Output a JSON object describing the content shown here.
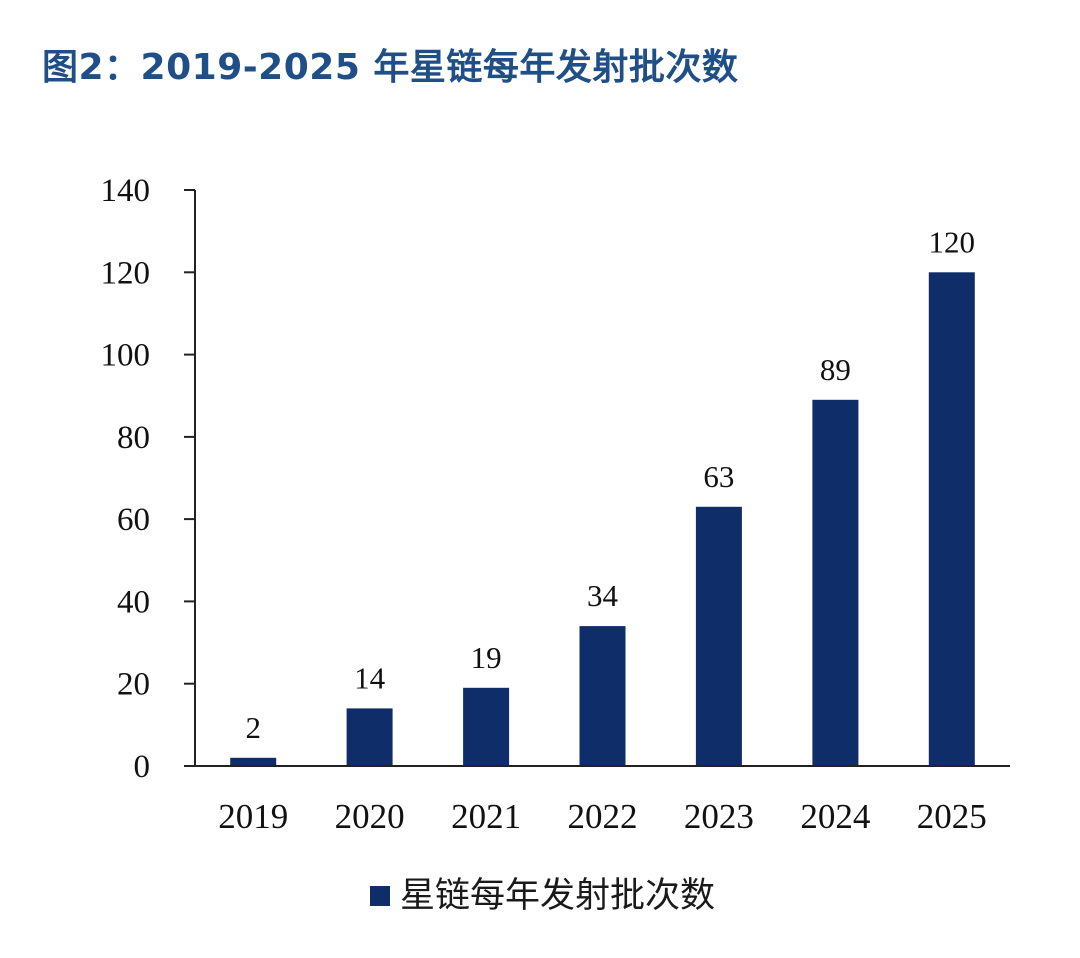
{
  "colors": {
    "bar": "#0e2d69",
    "title": "#1f4f86",
    "axis": "#222222"
  },
  "chart_data": {
    "type": "bar",
    "title": "图2：2019-2025 年星链每年发射批次数",
    "categories": [
      "2019",
      "2020",
      "2021",
      "2022",
      "2023",
      "2024",
      "2025"
    ],
    "series": [
      {
        "name": "星链每年发射批次数",
        "values": [
          2,
          14,
          19,
          34,
          63,
          89,
          120
        ]
      }
    ],
    "data_labels": [
      "2",
      "14",
      "19",
      "34",
      "63",
      "89",
      "120"
    ],
    "ylim": [
      0,
      140
    ],
    "yticks": [
      0,
      20,
      40,
      60,
      80,
      100,
      120,
      140
    ],
    "ytick_labels": [
      "0",
      "20",
      "40",
      "60",
      "80",
      "100",
      "120",
      "140"
    ],
    "xlabel": "",
    "ylabel": "",
    "grid": false,
    "legend": "bottom"
  }
}
